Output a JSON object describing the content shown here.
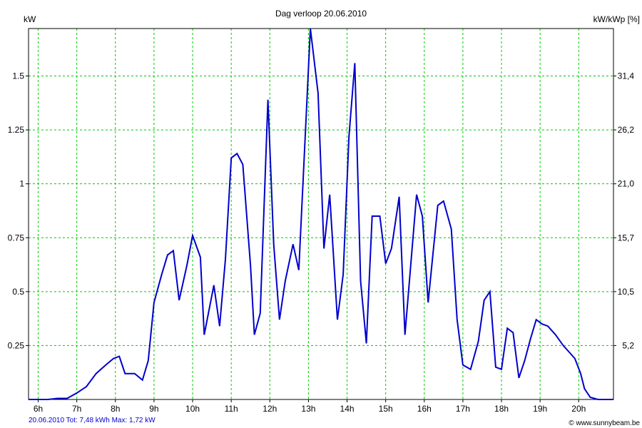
{
  "chart_data": {
    "type": "line",
    "title": "Dag  verloop 20.06.2010",
    "ylabel_left": "kW",
    "ylabel_right": "kW/kWp [%]",
    "xlabel": "",
    "x_ticks": [
      "6h",
      "7h",
      "8h",
      "9h",
      "10h",
      "11h",
      "12h",
      "13h",
      "14h",
      "15h",
      "16h",
      "17h",
      "18h",
      "19h",
      "20h"
    ],
    "y_ticks_left": [
      "0.25",
      "0.5",
      "0.75",
      "1",
      "1.25",
      "1.5"
    ],
    "y_ticks_right": [
      "5,2",
      "10,5",
      "15,7",
      "21,0",
      "26,2",
      "31,4"
    ],
    "ylim": [
      0,
      1.72
    ],
    "xlim": [
      5.75,
      20.9
    ],
    "grid": true,
    "line_color": "#0000cc",
    "grid_color": "#00cc00",
    "series": [
      {
        "values": [
          [
            5.75,
            0
          ],
          [
            6.0,
            0
          ],
          [
            6.25,
            0
          ],
          [
            6.5,
            0.005
          ],
          [
            6.75,
            0.005
          ],
          [
            7.0,
            0.03
          ],
          [
            7.25,
            0.06
          ],
          [
            7.5,
            0.12
          ],
          [
            7.75,
            0.16
          ],
          [
            7.95,
            0.19
          ],
          [
            8.1,
            0.2
          ],
          [
            8.25,
            0.12
          ],
          [
            8.5,
            0.12
          ],
          [
            8.7,
            0.09
          ],
          [
            8.85,
            0.18
          ],
          [
            9.0,
            0.45
          ],
          [
            9.2,
            0.58
          ],
          [
            9.35,
            0.67
          ],
          [
            9.5,
            0.69
          ],
          [
            9.65,
            0.46
          ],
          [
            9.85,
            0.62
          ],
          [
            10.0,
            0.76
          ],
          [
            10.2,
            0.66
          ],
          [
            10.3,
            0.3
          ],
          [
            10.55,
            0.53
          ],
          [
            10.7,
            0.34
          ],
          [
            10.85,
            0.65
          ],
          [
            11.0,
            1.12
          ],
          [
            11.15,
            1.14
          ],
          [
            11.3,
            1.09
          ],
          [
            11.5,
            0.62
          ],
          [
            11.6,
            0.3
          ],
          [
            11.75,
            0.4
          ],
          [
            11.95,
            1.39
          ],
          [
            12.1,
            0.72
          ],
          [
            12.25,
            0.37
          ],
          [
            12.4,
            0.55
          ],
          [
            12.6,
            0.72
          ],
          [
            12.75,
            0.6
          ],
          [
            13.05,
            1.72
          ],
          [
            13.25,
            1.42
          ],
          [
            13.4,
            0.7
          ],
          [
            13.55,
            0.95
          ],
          [
            13.75,
            0.37
          ],
          [
            13.9,
            0.58
          ],
          [
            14.05,
            1.22
          ],
          [
            14.2,
            1.56
          ],
          [
            14.35,
            0.55
          ],
          [
            14.5,
            0.26
          ],
          [
            14.65,
            0.85
          ],
          [
            14.85,
            0.85
          ],
          [
            15.0,
            0.63
          ],
          [
            15.15,
            0.7
          ],
          [
            15.35,
            0.94
          ],
          [
            15.5,
            0.3
          ],
          [
            15.8,
            0.95
          ],
          [
            15.95,
            0.85
          ],
          [
            16.1,
            0.45
          ],
          [
            16.35,
            0.9
          ],
          [
            16.5,
            0.92
          ],
          [
            16.7,
            0.79
          ],
          [
            16.85,
            0.37
          ],
          [
            17.0,
            0.16
          ],
          [
            17.2,
            0.14
          ],
          [
            17.4,
            0.27
          ],
          [
            17.55,
            0.46
          ],
          [
            17.7,
            0.5
          ],
          [
            17.85,
            0.15
          ],
          [
            18.0,
            0.14
          ],
          [
            18.15,
            0.33
          ],
          [
            18.3,
            0.31
          ],
          [
            18.45,
            0.1
          ],
          [
            18.6,
            0.18
          ],
          [
            18.75,
            0.28
          ],
          [
            18.9,
            0.37
          ],
          [
            19.05,
            0.35
          ],
          [
            19.2,
            0.34
          ],
          [
            19.4,
            0.3
          ],
          [
            19.6,
            0.25
          ],
          [
            19.75,
            0.22
          ],
          [
            19.9,
            0.19
          ],
          [
            20.05,
            0.12
          ],
          [
            20.15,
            0.05
          ],
          [
            20.3,
            0.01
          ],
          [
            20.5,
            0
          ],
          [
            20.9,
            0
          ]
        ]
      }
    ]
  },
  "footer": {
    "summary": "20.06.2010 Tot: 7,48 kWh Max: 1,72 kW",
    "credit": "© www.sunnybeam.be"
  }
}
